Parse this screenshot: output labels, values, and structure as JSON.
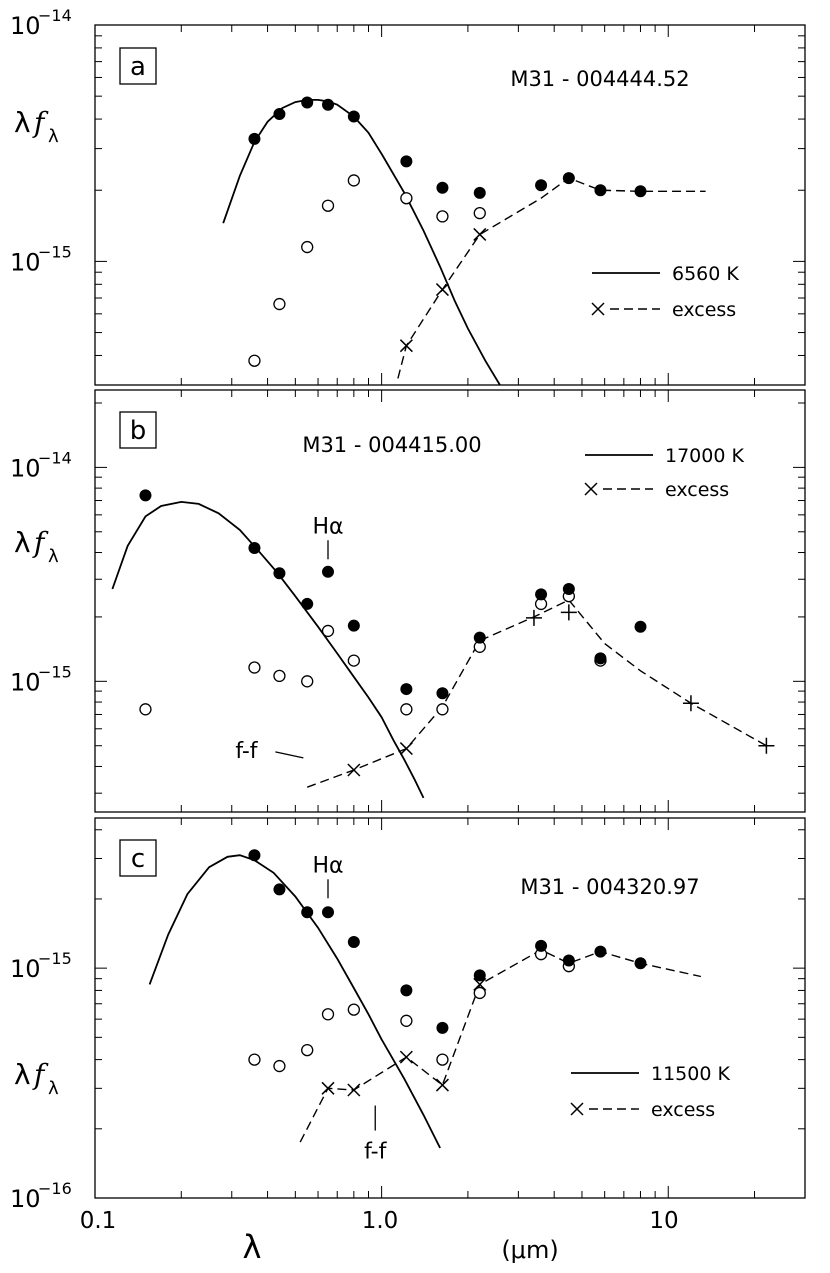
{
  "figure": {
    "x_axis_label": "λ",
    "x_unit": "(μm)",
    "x_ticks": [
      "0.1",
      "1.0",
      "10"
    ],
    "y_label_main": "λ",
    "y_label_f": "f",
    "y_label_sub": "λ"
  },
  "chart_data": [
    {
      "type": "scatter",
      "panel": "a",
      "object": "M31 - 004444.52",
      "x_scale": "log",
      "y_scale": "log",
      "xlim": [
        0.1,
        30
      ],
      "ylim": [
        3e-16,
        1e-14
      ],
      "y_ticks": [
        {
          "value": 1e-14,
          "label_base": "10",
          "label_exp": "−14"
        },
        {
          "value": 1e-15,
          "label_base": "10",
          "label_exp": "−15"
        }
      ],
      "legend": {
        "position": "bottom-right",
        "model_label": "6560 K",
        "excess_label": "excess"
      },
      "filled": [
        [
          0.36,
          3.3e-15
        ],
        [
          0.44,
          4.2e-15
        ],
        [
          0.55,
          4.7e-15
        ],
        [
          0.65,
          4.6e-15
        ],
        [
          0.8,
          4.1e-15
        ],
        [
          1.22,
          2.65e-15
        ],
        [
          1.63,
          2.05e-15
        ],
        [
          2.2,
          1.95e-15
        ],
        [
          3.6,
          2.1e-15
        ],
        [
          4.5,
          2.25e-15
        ],
        [
          5.8,
          2e-15
        ],
        [
          8.0,
          1.98e-15
        ]
      ],
      "open": [
        [
          0.36,
          3.8e-16
        ],
        [
          0.44,
          6.6e-16
        ],
        [
          0.55,
          1.15e-15
        ],
        [
          0.65,
          1.72e-15
        ],
        [
          0.8,
          2.2e-15
        ],
        [
          1.22,
          1.85e-15
        ],
        [
          1.63,
          1.55e-15
        ],
        [
          2.2,
          1.6e-15
        ]
      ],
      "excess_markers": [
        [
          1.22,
          4.4e-16
        ],
        [
          1.63,
          7.6e-16
        ],
        [
          2.2,
          1.3e-15
        ]
      ],
      "excess_curve": [
        [
          1.14,
          3.2e-16
        ],
        [
          1.22,
          4.4e-16
        ],
        [
          1.63,
          7.6e-16
        ],
        [
          2.2,
          1.3e-15
        ],
        [
          3.6,
          1.85e-15
        ],
        [
          4.5,
          2.25e-15
        ],
        [
          5.8,
          2e-15
        ],
        [
          8.0,
          1.98e-15
        ],
        [
          13.5,
          1.98e-15
        ]
      ],
      "model_curve": [
        [
          0.28,
          1.45e-15
        ],
        [
          0.32,
          2.3e-15
        ],
        [
          0.36,
          3.2e-15
        ],
        [
          0.4,
          3.9e-15
        ],
        [
          0.45,
          4.45e-15
        ],
        [
          0.5,
          4.72e-15
        ],
        [
          0.55,
          4.82e-15
        ],
        [
          0.6,
          4.82e-15
        ],
        [
          0.65,
          4.75e-15
        ],
        [
          0.7,
          4.6e-15
        ],
        [
          0.8,
          4.1e-15
        ],
        [
          0.9,
          3.5e-15
        ],
        [
          1.0,
          2.85e-15
        ],
        [
          1.2,
          1.95e-15
        ],
        [
          1.4,
          1.35e-15
        ],
        [
          1.6,
          9.5e-16
        ],
        [
          1.8,
          6.8e-16
        ],
        [
          2.0,
          5.2e-16
        ],
        [
          2.3,
          3.8e-16
        ],
        [
          2.7,
          2.75e-16
        ]
      ]
    },
    {
      "type": "scatter",
      "panel": "b",
      "object": "M31 - 004415.00",
      "x_scale": "log",
      "y_scale": "log",
      "xlim": [
        0.1,
        30
      ],
      "ylim": [
        2.45e-16,
        2.3e-14
      ],
      "y_ticks": [
        {
          "value": 1e-14,
          "label_base": "10",
          "label_exp": "−14"
        },
        {
          "value": 1e-15,
          "label_base": "10",
          "label_exp": "−15"
        }
      ],
      "legend": {
        "position": "top-right",
        "model_label": "17000 K",
        "excess_label": "excess"
      },
      "annotations": [
        {
          "text": "Hα",
          "x": 0.65,
          "y": 3.2e-15
        },
        {
          "text": "f-f",
          "x": 0.5,
          "y": 4.2e-16
        }
      ],
      "filled": [
        [
          0.15,
          7.4e-15
        ],
        [
          0.36,
          4.2e-15
        ],
        [
          0.44,
          3.2e-15
        ],
        [
          0.55,
          2.3e-15
        ],
        [
          0.65,
          3.25e-15
        ],
        [
          0.8,
          1.82e-15
        ],
        [
          1.22,
          9.2e-16
        ],
        [
          1.63,
          8.8e-16
        ],
        [
          2.2,
          1.6e-15
        ],
        [
          3.6,
          2.55e-15
        ],
        [
          4.5,
          2.7e-15
        ],
        [
          5.8,
          1.28e-15
        ],
        [
          8.0,
          1.8e-15
        ]
      ],
      "open": [
        [
          0.15,
          7.4e-16
        ],
        [
          0.36,
          1.16e-15
        ],
        [
          0.44,
          1.06e-15
        ],
        [
          0.55,
          1e-15
        ],
        [
          0.65,
          1.72e-15
        ],
        [
          0.8,
          1.25e-15
        ],
        [
          1.22,
          7.4e-16
        ],
        [
          1.63,
          7.4e-16
        ],
        [
          2.2,
          1.45e-15
        ],
        [
          3.6,
          2.3e-15
        ],
        [
          4.5,
          2.5e-15
        ],
        [
          5.8,
          1.25e-15
        ]
      ],
      "excess_markers": [
        [
          0.8,
          3.85e-16
        ],
        [
          1.22,
          4.85e-16
        ]
      ],
      "plus_markers": [
        [
          3.4,
          1.98e-15
        ],
        [
          4.5,
          2.1e-15
        ],
        [
          12.0,
          7.9e-16
        ],
        [
          22.0,
          5e-16
        ]
      ],
      "excess_curve": [
        [
          0.55,
          3.2e-16
        ],
        [
          0.8,
          3.85e-16
        ],
        [
          1.22,
          4.85e-16
        ],
        [
          1.63,
          7.6e-16
        ],
        [
          2.2,
          1.55e-15
        ],
        [
          3.4,
          2e-15
        ],
        [
          4.5,
          2.4e-15
        ],
        [
          6.0,
          1.5e-15
        ],
        [
          8.0,
          1.12e-15
        ],
        [
          12.0,
          7.9e-16
        ],
        [
          22.0,
          5e-16
        ]
      ],
      "model_curve": [
        [
          0.115,
          2.7e-15
        ],
        [
          0.13,
          4.3e-15
        ],
        [
          0.15,
          5.9e-15
        ],
        [
          0.17,
          6.6e-15
        ],
        [
          0.2,
          6.9e-15
        ],
        [
          0.23,
          6.75e-15
        ],
        [
          0.27,
          6.1e-15
        ],
        [
          0.32,
          5.1e-15
        ],
        [
          0.37,
          4.1e-15
        ],
        [
          0.43,
          3.25e-15
        ],
        [
          0.5,
          2.5e-15
        ],
        [
          0.6,
          1.8e-15
        ],
        [
          0.7,
          1.35e-15
        ],
        [
          0.8,
          1.05e-15
        ],
        [
          0.9,
          8.4e-16
        ],
        [
          1.0,
          6.8e-16
        ],
        [
          1.1,
          5.3e-16
        ],
        [
          1.2,
          4.3e-16
        ],
        [
          1.3,
          3.5e-16
        ],
        [
          1.4,
          2.85e-16
        ]
      ]
    },
    {
      "type": "scatter",
      "panel": "c",
      "object": "M31 - 004320.97",
      "x_scale": "log",
      "y_scale": "log",
      "xlim": [
        0.1,
        30
      ],
      "ylim": [
        1e-16,
        4.5e-15
      ],
      "y_ticks": [
        {
          "value": 1e-15,
          "label_base": "10",
          "label_exp": "−15"
        },
        {
          "value": 1e-16,
          "label_base": "10",
          "label_exp": "−16"
        }
      ],
      "legend": {
        "position": "bottom-right",
        "model_label": "11500 K",
        "excess_label": "excess"
      },
      "annotations": [
        {
          "text": "Hα",
          "x": 0.65,
          "y": 1.75e-15
        },
        {
          "text": "f-f",
          "x": 0.95,
          "y": 2.5e-16
        }
      ],
      "filled": [
        [
          0.36,
          3.1e-15
        ],
        [
          0.44,
          2.2e-15
        ],
        [
          0.55,
          1.75e-15
        ],
        [
          0.65,
          1.75e-15
        ],
        [
          0.8,
          1.3e-15
        ],
        [
          1.22,
          8e-16
        ],
        [
          1.63,
          5.5e-16
        ],
        [
          2.2,
          9.3e-16
        ],
        [
          3.6,
          1.25e-15
        ],
        [
          4.5,
          1.08e-15
        ],
        [
          5.8,
          1.18e-15
        ],
        [
          8.0,
          1.05e-15
        ]
      ],
      "open": [
        [
          0.36,
          4e-16
        ],
        [
          0.44,
          3.75e-16
        ],
        [
          0.55,
          4.4e-16
        ],
        [
          0.65,
          6.3e-16
        ],
        [
          0.8,
          6.6e-16
        ],
        [
          1.22,
          5.9e-16
        ],
        [
          1.63,
          4e-16
        ],
        [
          2.2,
          7.8e-16
        ],
        [
          3.6,
          1.15e-15
        ],
        [
          4.5,
          1.02e-15
        ]
      ],
      "excess_markers": [
        [
          0.65,
          3e-16
        ],
        [
          0.8,
          2.95e-16
        ],
        [
          1.22,
          4.1e-16
        ],
        [
          1.63,
          3.1e-16
        ],
        [
          2.2,
          8.5e-16
        ]
      ],
      "excess_curve": [
        [
          0.52,
          1.75e-16
        ],
        [
          0.65,
          3e-16
        ],
        [
          0.8,
          2.95e-16
        ],
        [
          1.22,
          4.1e-16
        ],
        [
          1.63,
          3.1e-16
        ],
        [
          2.2,
          8.5e-16
        ],
        [
          3.6,
          1.2e-15
        ],
        [
          4.5,
          1.05e-15
        ],
        [
          5.8,
          1.18e-15
        ],
        [
          8.0,
          1.05e-15
        ],
        [
          13.0,
          9.2e-16
        ]
      ],
      "model_curve": [
        [
          0.155,
          8.5e-16
        ],
        [
          0.18,
          1.4e-15
        ],
        [
          0.21,
          2.1e-15
        ],
        [
          0.25,
          2.75e-15
        ],
        [
          0.29,
          3.05e-15
        ],
        [
          0.32,
          3.1e-15
        ],
        [
          0.36,
          2.95e-15
        ],
        [
          0.42,
          2.6e-15
        ],
        [
          0.5,
          2.05e-15
        ],
        [
          0.6,
          1.5e-15
        ],
        [
          0.7,
          1.1e-15
        ],
        [
          0.8,
          8.2e-16
        ],
        [
          0.9,
          6.3e-16
        ],
        [
          1.0,
          4.9e-16
        ],
        [
          1.2,
          3.3e-16
        ],
        [
          1.4,
          2.3e-16
        ],
        [
          1.6,
          1.65e-16
        ]
      ]
    }
  ]
}
